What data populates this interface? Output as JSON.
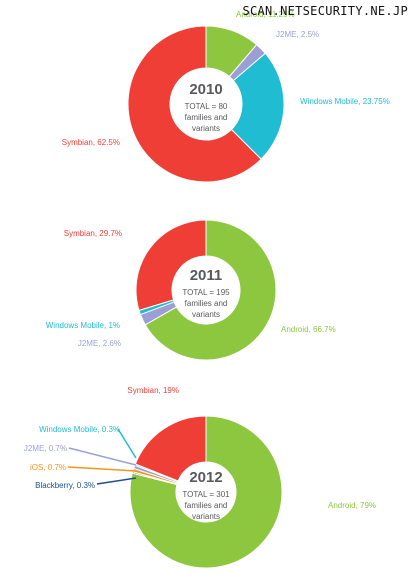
{
  "watermark": "SCAN.NETSECURITY.NE.JP",
  "colors": {
    "Android": "#8dc63f",
    "J2ME": "#9b9fd6",
    "Windows Mobile": "#1fbcd2",
    "Symbian": "#ef3e36",
    "iOS": "#f7941d",
    "Blackberry": "#1f4e8c",
    "center_text": "#58595b"
  },
  "chart_data": [
    {
      "type": "pie",
      "year": "2010",
      "total_label": "TOTAL = 80",
      "total_sub1": "families and",
      "total_sub2": "variants",
      "slices": [
        {
          "name": "Android",
          "value": 11.25,
          "label": "Android, 11.25%"
        },
        {
          "name": "J2ME",
          "value": 2.5,
          "label": "J2ME, 2.5%"
        },
        {
          "name": "Windows Mobile",
          "value": 23.75,
          "label": "Windows Mobile, 23.75%"
        },
        {
          "name": "Symbian",
          "value": 62.5,
          "label": "Symbian, 62.5%"
        }
      ]
    },
    {
      "type": "pie",
      "year": "2011",
      "total_label": "TOTAL = 195",
      "total_sub1": "families and",
      "total_sub2": "variants",
      "slices": [
        {
          "name": "Android",
          "value": 66.7,
          "label": "Android, 66.7%"
        },
        {
          "name": "J2ME",
          "value": 2.6,
          "label": "J2ME, 2.6%"
        },
        {
          "name": "Windows Mobile",
          "value": 1,
          "label": "Windows Mobile, 1%"
        },
        {
          "name": "Symbian",
          "value": 29.7,
          "label": "Symbian, 29.7%"
        }
      ]
    },
    {
      "type": "pie",
      "year": "2012",
      "total_label": "TOTAL = 301",
      "total_sub1": "families and",
      "total_sub2": "variants",
      "slices": [
        {
          "name": "Android",
          "value": 79,
          "label": "Android, 79%"
        },
        {
          "name": "Blackberry",
          "value": 0.3,
          "label": "Blackberry, 0.3%"
        },
        {
          "name": "iOS",
          "value": 0.7,
          "label": "iOS, 0.7%"
        },
        {
          "name": "J2ME",
          "value": 0.7,
          "label": "J2ME, 0.7%"
        },
        {
          "name": "Windows Mobile",
          "value": 0.3,
          "label": "Windows Mobile, 0.3%"
        },
        {
          "name": "Symbian",
          "value": 19,
          "label": "Symbian, 19%"
        }
      ]
    }
  ]
}
